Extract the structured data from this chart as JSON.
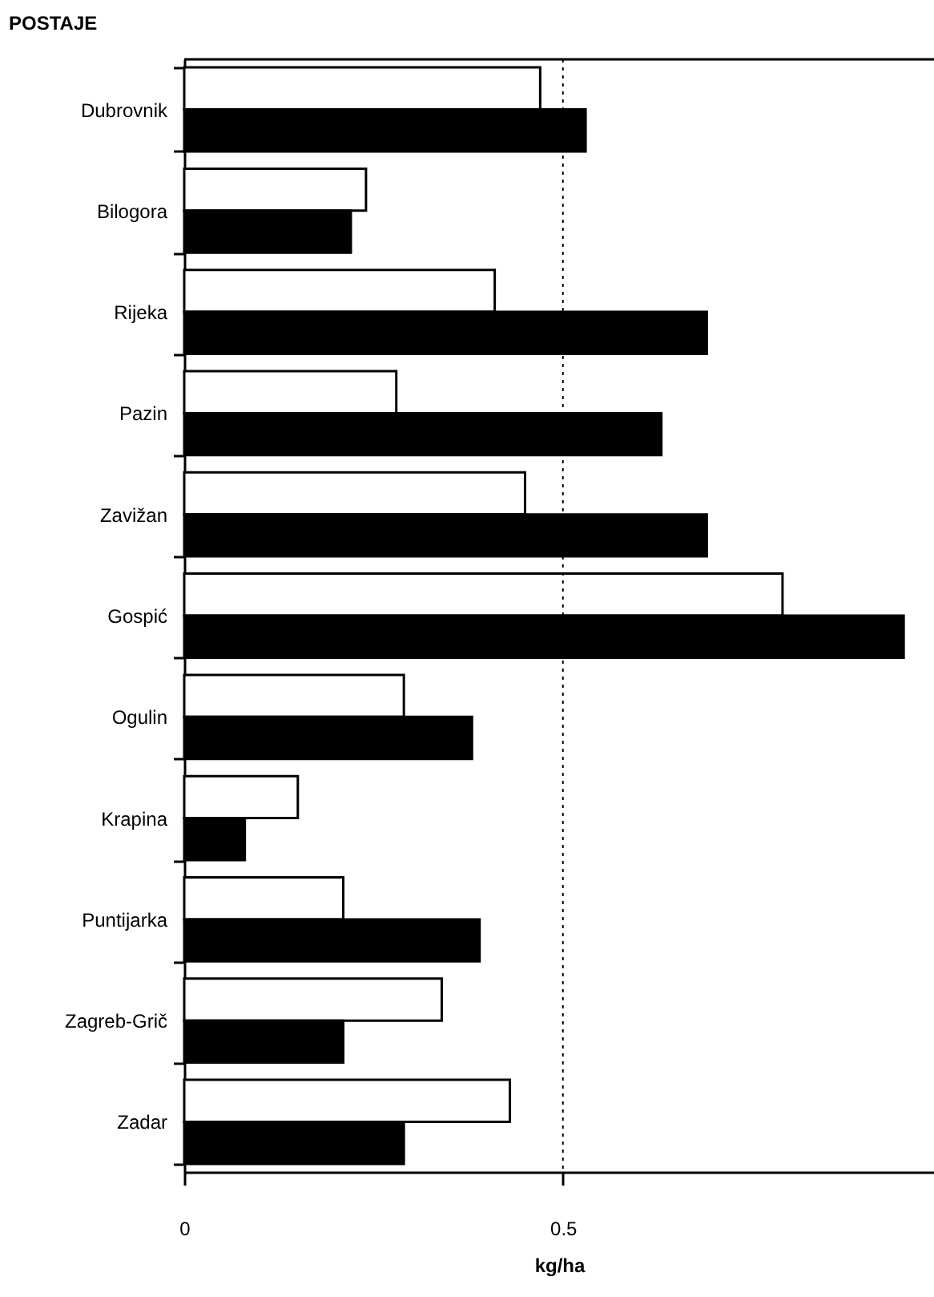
{
  "chart_data": {
    "type": "bar",
    "orientation": "horizontal",
    "ylabel": "POSTAJE",
    "xlabel": "kg/ha",
    "categories": [
      "Dubrovnik",
      "Bilogora",
      "Rijeka",
      "Pazin",
      "Zavižan",
      "Gospić",
      "Ogulin",
      "Krapina",
      "Puntijarka",
      "Zagreb-Grič",
      "Zadar"
    ],
    "series": [
      {
        "color": "#ffffff",
        "values": [
          0.47,
          0.24,
          0.41,
          0.28,
          0.45,
          0.79,
          0.29,
          0.15,
          0.21,
          0.34,
          0.43
        ]
      },
      {
        "color": "#000000",
        "values": [
          0.53,
          0.22,
          0.69,
          0.63,
          0.69,
          0.95,
          0.38,
          0.08,
          0.39,
          0.21,
          0.29
        ]
      }
    ],
    "xlim": [
      0,
      0.99
    ],
    "xticks": [
      0,
      0.5
    ],
    "grid": false,
    "ref_lines": [
      {
        "axis": "x",
        "value": 0.5,
        "line_style": "dotted",
        "color": "#000000"
      }
    ]
  }
}
